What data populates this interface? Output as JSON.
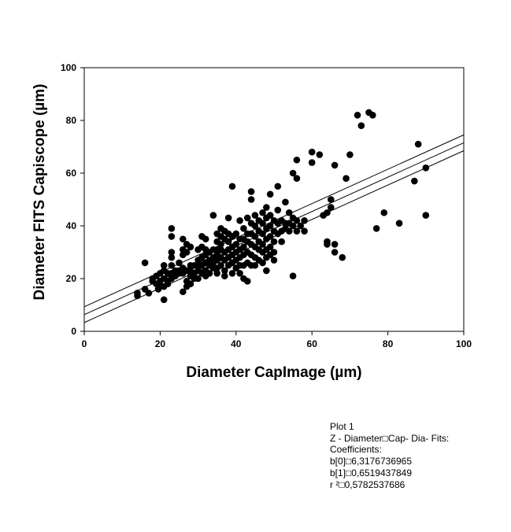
{
  "chart_data": {
    "type": "scatter",
    "xlabel": "Diameter CapImage (µm)",
    "ylabel": "Diameter FITS Capiscope (µm)",
    "xlim": [
      0,
      100
    ],
    "ylim": [
      0,
      100
    ],
    "x_ticks": [
      "0",
      "20",
      "40",
      "60",
      "80",
      "100"
    ],
    "y_ticks": [
      "0",
      "20",
      "40",
      "60",
      "80",
      "100"
    ],
    "grid": false,
    "regression": {
      "intercept": 6.3176736965,
      "slope": 0.6519437849,
      "band_offset": 3.0,
      "note": "center regression line with two confidence band lines"
    },
    "points": [
      [
        14,
        13.5
      ],
      [
        14,
        14.5
      ],
      [
        16,
        26
      ],
      [
        16,
        16
      ],
      [
        17,
        14.5
      ],
      [
        18,
        20
      ],
      [
        18,
        19
      ],
      [
        19,
        21
      ],
      [
        19,
        18
      ],
      [
        19.5,
        16
      ],
      [
        20,
        22
      ],
      [
        20,
        19
      ],
      [
        20,
        17
      ],
      [
        21,
        25
      ],
      [
        21,
        23
      ],
      [
        21,
        20
      ],
      [
        21,
        17
      ],
      [
        21,
        12
      ],
      [
        22,
        22
      ],
      [
        22,
        19
      ],
      [
        22,
        18
      ],
      [
        23,
        39
      ],
      [
        23,
        36
      ],
      [
        23,
        30
      ],
      [
        23,
        28
      ],
      [
        23,
        25
      ],
      [
        23,
        22
      ],
      [
        23,
        20
      ],
      [
        24,
        23
      ],
      [
        24,
        21
      ],
      [
        25,
        26
      ],
      [
        25,
        23
      ],
      [
        25,
        22
      ],
      [
        26,
        35
      ],
      [
        26,
        31
      ],
      [
        26,
        29
      ],
      [
        26,
        24
      ],
      [
        26,
        22
      ],
      [
        26,
        15
      ],
      [
        27,
        33
      ],
      [
        27,
        30
      ],
      [
        27,
        23
      ],
      [
        27,
        19
      ],
      [
        27,
        17
      ],
      [
        28,
        32
      ],
      [
        28,
        25
      ],
      [
        28,
        23
      ],
      [
        28,
        21
      ],
      [
        28,
        18
      ],
      [
        29,
        25
      ],
      [
        29,
        22
      ],
      [
        29,
        20
      ],
      [
        30,
        31
      ],
      [
        30,
        27
      ],
      [
        30,
        25
      ],
      [
        30,
        23
      ],
      [
        30,
        20
      ],
      [
        31,
        36
      ],
      [
        31,
        32
      ],
      [
        31,
        28
      ],
      [
        31,
        25
      ],
      [
        31,
        22
      ],
      [
        32,
        35
      ],
      [
        32,
        31
      ],
      [
        32,
        29
      ],
      [
        32,
        26
      ],
      [
        32,
        23
      ],
      [
        32,
        21
      ],
      [
        33,
        30
      ],
      [
        33,
        27
      ],
      [
        33,
        25
      ],
      [
        33,
        22
      ],
      [
        34,
        44
      ],
      [
        34,
        31
      ],
      [
        34,
        28
      ],
      [
        34,
        26
      ],
      [
        34,
        24
      ],
      [
        35,
        37
      ],
      [
        35,
        34
      ],
      [
        35,
        31
      ],
      [
        35,
        29
      ],
      [
        35,
        27
      ],
      [
        35,
        24
      ],
      [
        35,
        22
      ],
      [
        36,
        39
      ],
      [
        36,
        36
      ],
      [
        36,
        33
      ],
      [
        36,
        31
      ],
      [
        36,
        28
      ],
      [
        36,
        25
      ],
      [
        37,
        38
      ],
      [
        37,
        35
      ],
      [
        37,
        30
      ],
      [
        37,
        27
      ],
      [
        37,
        23
      ],
      [
        37,
        21
      ],
      [
        38,
        43
      ],
      [
        38,
        37
      ],
      [
        38,
        34
      ],
      [
        38,
        31
      ],
      [
        38,
        28
      ],
      [
        38,
        25
      ],
      [
        39,
        55
      ],
      [
        39,
        36
      ],
      [
        39,
        32
      ],
      [
        39,
        29
      ],
      [
        39,
        26
      ],
      [
        39,
        22
      ],
      [
        40,
        37
      ],
      [
        40,
        33
      ],
      [
        40,
        30
      ],
      [
        40,
        27
      ],
      [
        40,
        24
      ],
      [
        41,
        42
      ],
      [
        41,
        35
      ],
      [
        41,
        31
      ],
      [
        41,
        28
      ],
      [
        41,
        25
      ],
      [
        41,
        22
      ],
      [
        42,
        39
      ],
      [
        42,
        35
      ],
      [
        42,
        32
      ],
      [
        42,
        29
      ],
      [
        42,
        25
      ],
      [
        42,
        20
      ],
      [
        43,
        43
      ],
      [
        43,
        37
      ],
      [
        43,
        34
      ],
      [
        43,
        30
      ],
      [
        43,
        26
      ],
      [
        43,
        19
      ],
      [
        44,
        53
      ],
      [
        44,
        50
      ],
      [
        44,
        41
      ],
      [
        44,
        37
      ],
      [
        44,
        33
      ],
      [
        44,
        29
      ],
      [
        44,
        25
      ],
      [
        45,
        44
      ],
      [
        45,
        40
      ],
      [
        45,
        36
      ],
      [
        45,
        32
      ],
      [
        45,
        28
      ],
      [
        45,
        25
      ],
      [
        46,
        42
      ],
      [
        46,
        38
      ],
      [
        46,
        34
      ],
      [
        46,
        31
      ],
      [
        46,
        27
      ],
      [
        47,
        45
      ],
      [
        47,
        41
      ],
      [
        47,
        37
      ],
      [
        47,
        33
      ],
      [
        47,
        30
      ],
      [
        47,
        26
      ],
      [
        48,
        47
      ],
      [
        48,
        43
      ],
      [
        48,
        39
      ],
      [
        48,
        35
      ],
      [
        48,
        31
      ],
      [
        48,
        28
      ],
      [
        48,
        23
      ],
      [
        49,
        52
      ],
      [
        49,
        44
      ],
      [
        49,
        40
      ],
      [
        49,
        36
      ],
      [
        49,
        32
      ],
      [
        49,
        29
      ],
      [
        50,
        42
      ],
      [
        50,
        38
      ],
      [
        50,
        34
      ],
      [
        50,
        30
      ],
      [
        50,
        27
      ],
      [
        51,
        55
      ],
      [
        51,
        46
      ],
      [
        51,
        41
      ],
      [
        51,
        37
      ],
      [
        52,
        42
      ],
      [
        52,
        38
      ],
      [
        52,
        34
      ],
      [
        53,
        49
      ],
      [
        53,
        41
      ],
      [
        53,
        39
      ],
      [
        54,
        45
      ],
      [
        54,
        41
      ],
      [
        54,
        38
      ],
      [
        55,
        60
      ],
      [
        55,
        43
      ],
      [
        55,
        40
      ],
      [
        55,
        21
      ],
      [
        56,
        65
      ],
      [
        56,
        58
      ],
      [
        56,
        42
      ],
      [
        56,
        38
      ],
      [
        57,
        40
      ],
      [
        58,
        42
      ],
      [
        58,
        38
      ],
      [
        60,
        68
      ],
      [
        60,
        64
      ],
      [
        62,
        67
      ],
      [
        63,
        44
      ],
      [
        64,
        45
      ],
      [
        64,
        34
      ],
      [
        64,
        33
      ],
      [
        65,
        50
      ],
      [
        65,
        47
      ],
      [
        66,
        63
      ],
      [
        66,
        33
      ],
      [
        66,
        30
      ],
      [
        68,
        28
      ],
      [
        69,
        58
      ],
      [
        70,
        67
      ],
      [
        72,
        82
      ],
      [
        73,
        78
      ],
      [
        75,
        83
      ],
      [
        76,
        82
      ],
      [
        77,
        39
      ],
      [
        79,
        45
      ],
      [
        83,
        41
      ],
      [
        87,
        57
      ],
      [
        88,
        71
      ],
      [
        90,
        62
      ],
      [
        90,
        44
      ]
    ]
  },
  "stats_note": {
    "lines": [
      "Plot 1",
      "Z - Diameter□Cap- Dia- Fits:",
      "Coefficients:",
      "b[0]□6,3176736965",
      "b[1]□0,6519437849",
      "r ²□0,5782537686"
    ]
  }
}
